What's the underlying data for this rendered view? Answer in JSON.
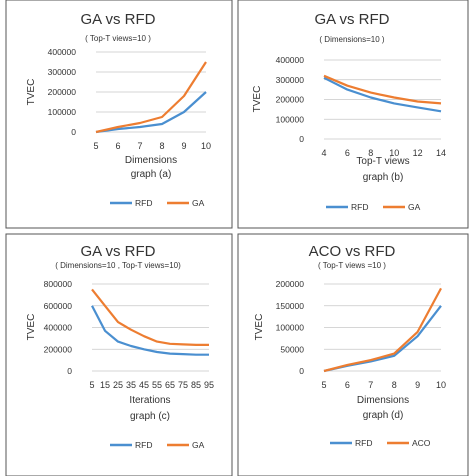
{
  "colors": {
    "rfd": "#4a8fd0",
    "other": "#ed7d31",
    "axis": "#c8c8c8",
    "text": "#333333",
    "border": "#555555"
  },
  "chart_data": [
    {
      "type": "line",
      "title": "GA vs RFD",
      "subtitle": "( Top-T views=10 )",
      "ylabel": "TVEC",
      "xlabel": "Dimensions",
      "caption": "graph (a)",
      "categories": [
        "5",
        "6",
        "7",
        "8",
        "9",
        "10"
      ],
      "ylim": [
        0,
        400000
      ],
      "yticks": [
        "0",
        "100000",
        "200000",
        "300000",
        "400000"
      ],
      "legend_position": "bottom",
      "series": [
        {
          "name": "RFD",
          "color": "#4a8fd0",
          "values": [
            0,
            15000,
            25000,
            40000,
            100000,
            200000
          ]
        },
        {
          "name": "GA",
          "color": "#ed7d31",
          "values": [
            0,
            25000,
            45000,
            75000,
            180000,
            350000
          ]
        }
      ]
    },
    {
      "type": "line",
      "title": "GA vs RFD",
      "subtitle": "( Dimensions=10 )",
      "ylabel": "TVEC",
      "xlabel": "Top-T views",
      "caption": "graph (b)",
      "categories": [
        "4",
        "6",
        "8",
        "10",
        "12",
        "14"
      ],
      "ylim": [
        0,
        400000
      ],
      "yticks": [
        "0",
        "100000",
        "200000",
        "300000",
        "400000"
      ],
      "legend_position": "bottom",
      "series": [
        {
          "name": "RFD",
          "color": "#4a8fd0",
          "values": [
            310000,
            250000,
            210000,
            180000,
            160000,
            140000
          ]
        },
        {
          "name": "GA",
          "color": "#ed7d31",
          "values": [
            320000,
            270000,
            235000,
            210000,
            190000,
            180000
          ]
        }
      ]
    },
    {
      "type": "line",
      "title": "GA vs RFD",
      "subtitle": "( Dimensions=10 , Top-T views=10)",
      "ylabel": "TVEC",
      "xlabel": "Iterations",
      "caption": "graph (c)",
      "categories": [
        "5",
        "15",
        "25",
        "35",
        "45",
        "55",
        "65",
        "75",
        "85",
        "95"
      ],
      "ylim": [
        0,
        800000
      ],
      "yticks": [
        "0",
        "200000",
        "400000",
        "600000",
        "800000"
      ],
      "legend_position": "bottom",
      "series": [
        {
          "name": "RFD",
          "color": "#4a8fd0",
          "values": [
            600000,
            370000,
            270000,
            230000,
            200000,
            175000,
            160000,
            155000,
            150000,
            150000
          ]
        },
        {
          "name": "GA",
          "color": "#ed7d31",
          "values": [
            750000,
            600000,
            450000,
            380000,
            320000,
            270000,
            250000,
            245000,
            240000,
            240000
          ]
        }
      ]
    },
    {
      "type": "line",
      "title": "ACO vs RFD",
      "subtitle": "( Top-T views =10 )",
      "ylabel": "TVEC",
      "xlabel": "Dimensions",
      "caption": "graph (d)",
      "categories": [
        "5",
        "6",
        "7",
        "8",
        "9",
        "10"
      ],
      "ylim": [
        0,
        200000
      ],
      "yticks": [
        "0",
        "50000",
        "100000",
        "150000",
        "200000"
      ],
      "legend_position": "bottom",
      "series": [
        {
          "name": "RFD",
          "color": "#4a8fd0",
          "values": [
            0,
            12000,
            22000,
            35000,
            80000,
            150000
          ]
        },
        {
          "name": "ACO",
          "color": "#ed7d31",
          "values": [
            0,
            14000,
            25000,
            40000,
            90000,
            190000
          ]
        }
      ]
    }
  ]
}
